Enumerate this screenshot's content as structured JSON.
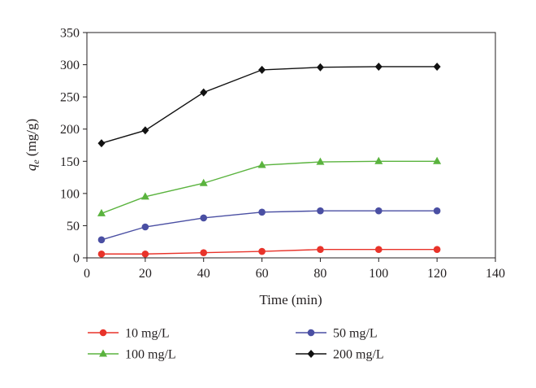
{
  "chart_data": {
    "type": "line",
    "xlabel": "Time (min)",
    "ylabel": {
      "symbol": "q",
      "subscript": "e",
      "unit": " (mg/g)"
    },
    "xlim": [
      0,
      140
    ],
    "ylim": [
      0,
      350
    ],
    "xticks": [
      0,
      20,
      40,
      60,
      80,
      100,
      120,
      140
    ],
    "yticks": [
      0,
      50,
      100,
      150,
      200,
      250,
      300,
      350
    ],
    "grid": false,
    "legend": "bottom",
    "x": [
      5,
      20,
      40,
      60,
      80,
      100,
      120
    ],
    "series": [
      {
        "name": "10 mg/L",
        "color": "#e8332a",
        "marker": "circle",
        "values": [
          6,
          6,
          8,
          10,
          13,
          13,
          13
        ]
      },
      {
        "name": "50 mg/L",
        "color": "#4a4fa3",
        "marker": "circle",
        "values": [
          28,
          48,
          62,
          71,
          73,
          73,
          73
        ]
      },
      {
        "name": "100 mg/L",
        "color": "#5ab33e",
        "marker": "triangle",
        "values": [
          69,
          95,
          116,
          144,
          149,
          150,
          150
        ]
      },
      {
        "name": "200 mg/L",
        "color": "#111111",
        "marker": "diamond",
        "values": [
          178,
          198,
          257,
          292,
          296,
          297,
          297
        ]
      }
    ]
  }
}
